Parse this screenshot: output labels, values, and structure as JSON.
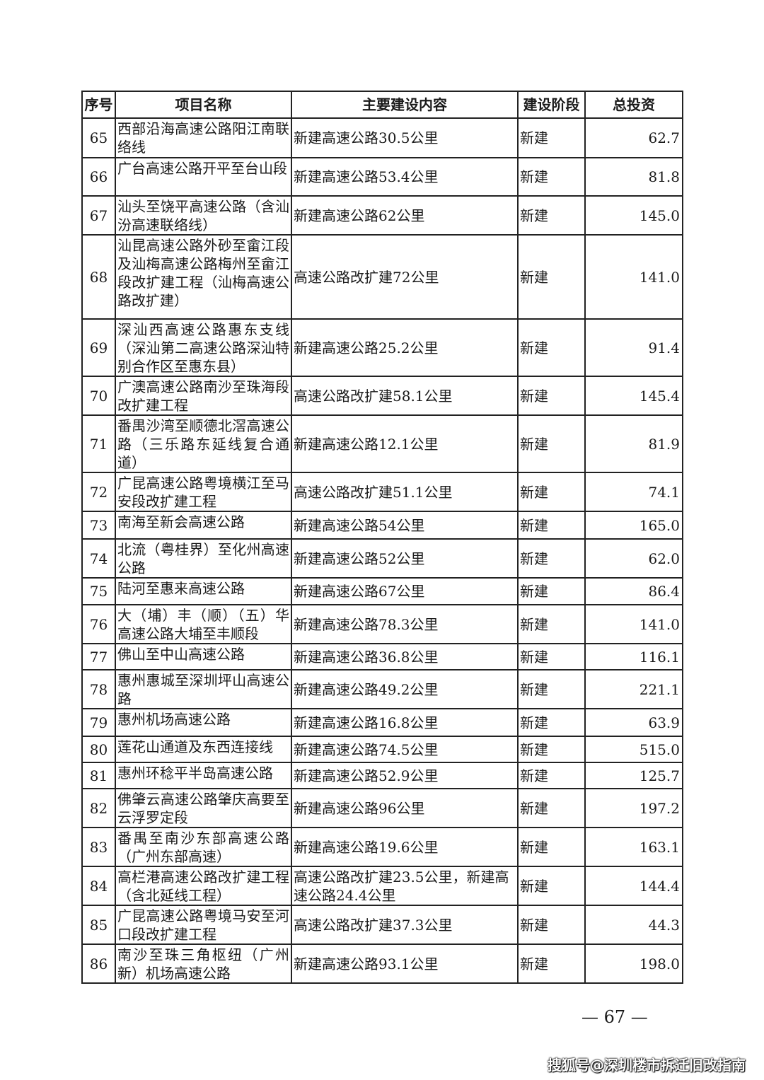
{
  "table": {
    "headers": [
      "序号",
      "项目名称",
      "主要建设内容",
      "建设阶段",
      "总投资"
    ],
    "rows": [
      {
        "no": "65",
        "name": "西部沿海高速公路阳江南联络线",
        "content": "新建高速公路30.5公里",
        "stage": "新建",
        "investment": "62.7"
      },
      {
        "no": "66",
        "name": "广台高速公路开平至台山段",
        "content": "新建高速公路53.4公里",
        "stage": "新建",
        "investment": "81.8"
      },
      {
        "no": "67",
        "name": "汕头至饶平高速公路（含汕汾高速联络线）",
        "content": "新建高速公路62公里",
        "stage": "新建",
        "investment": "145.0"
      },
      {
        "no": "68",
        "name": "汕昆高速公路外砂至畲江段及汕梅高速公路梅州至畲江段改扩建工程（汕梅高速公路改扩建）",
        "content": "高速公路改扩建72公里",
        "stage": "新建",
        "investment": "141.0"
      },
      {
        "no": "69",
        "name": "深汕西高速公路惠东支线（深汕第二高速公路深汕特别合作区至惠东县）",
        "content": "新建高速公路25.2公里",
        "stage": "新建",
        "investment": "91.4"
      },
      {
        "no": "70",
        "name": "广澳高速公路南沙至珠海段改扩建工程",
        "content": "高速公路改扩建58.1公里",
        "stage": "新建",
        "investment": "145.4"
      },
      {
        "no": "71",
        "name": "番禺沙湾至顺德北滘高速公路（三乐路东延线复合通道）",
        "content": "新建高速公路12.1公里",
        "stage": "新建",
        "investment": "81.9"
      },
      {
        "no": "72",
        "name": "广昆高速公路粤境横江至马安段改扩建工程",
        "content": "高速公路改扩建51.1公里",
        "stage": "新建",
        "investment": "74.1"
      },
      {
        "no": "73",
        "name": "南海至新会高速公路",
        "content": "新建高速公路54公里",
        "stage": "新建",
        "investment": "165.0"
      },
      {
        "no": "74",
        "name": "北流（粤桂界）至化州高速公路",
        "content": "新建高速公路52公里",
        "stage": "新建",
        "investment": "62.0"
      },
      {
        "no": "75",
        "name": "陆河至惠来高速公路",
        "content": "新建高速公路67公里",
        "stage": "新建",
        "investment": "86.4"
      },
      {
        "no": "76",
        "name": "大（埔）丰（顺）（五）华高速公路大埔至丰顺段",
        "content": "新建高速公路78.3公里",
        "stage": "新建",
        "investment": "141.0"
      },
      {
        "no": "77",
        "name": "佛山至中山高速公路",
        "content": "新建高速公路36.8公里",
        "stage": "新建",
        "investment": "116.1"
      },
      {
        "no": "78",
        "name": "惠州惠城至深圳坪山高速公路",
        "content": "新建高速公路49.2公里",
        "stage": "新建",
        "investment": "221.1"
      },
      {
        "no": "79",
        "name": "惠州机场高速公路",
        "content": "新建高速公路16.8公里",
        "stage": "新建",
        "investment": "63.9"
      },
      {
        "no": "80",
        "name": "莲花山通道及东西连接线",
        "content": "新建高速公路74.5公里",
        "stage": "新建",
        "investment": "515.0"
      },
      {
        "no": "81",
        "name": "惠州环稔平半岛高速公路",
        "content": "新建高速公路52.9公里",
        "stage": "新建",
        "investment": "125.7"
      },
      {
        "no": "82",
        "name": "佛肇云高速公路肇庆高要至云浮罗定段",
        "content": "新建高速公路96公里",
        "stage": "新建",
        "investment": "197.2"
      },
      {
        "no": "83",
        "name": "番禺至南沙东部高速公路（广州东部高速）",
        "content": "新建高速公路19.6公里",
        "stage": "新建",
        "investment": "163.1"
      },
      {
        "no": "84",
        "name": "高栏港高速公路改扩建工程（含北延线工程）",
        "content": "高速公路改扩建23.5公里，新建高速公路24.4公里",
        "stage": "新建",
        "investment": "144.4"
      },
      {
        "no": "85",
        "name": "广昆高速公路粤境马安至河口段改扩建工程",
        "content": "高速公路改扩建37.3公里",
        "stage": "新建",
        "investment": "44.3"
      },
      {
        "no": "86",
        "name": "南沙至珠三角枢纽（广州新）机场高速公路",
        "content": "新建高速公路93.1公里",
        "stage": "新建",
        "investment": "198.0"
      }
    ]
  },
  "page_number": "— 67 —",
  "watermark": "搜狐号@深圳楼市拆迁旧改指南"
}
